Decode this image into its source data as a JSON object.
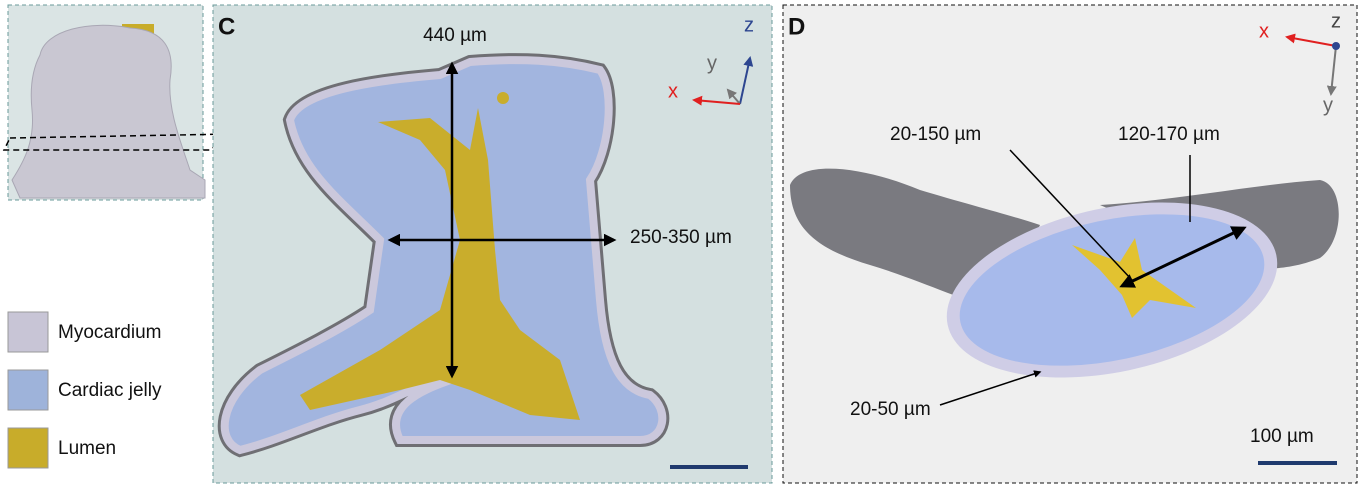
{
  "legend": {
    "items": [
      {
        "label": "Myocardium"
      },
      {
        "label": "Cardiac jelly"
      },
      {
        "label": "Lumen"
      }
    ]
  },
  "panels": [
    {
      "label": "C",
      "axes": {
        "z": "z",
        "y": "y",
        "x": "x"
      },
      "annotations": [
        "440 µm",
        "250-350 µm"
      ]
    },
    {
      "label": "D",
      "axes": {
        "z": "z",
        "y": "y",
        "x": "x"
      },
      "annotations": [
        "20-150 µm",
        "120-170 µm",
        "20-50 µm",
        "100 µm"
      ]
    }
  ]
}
